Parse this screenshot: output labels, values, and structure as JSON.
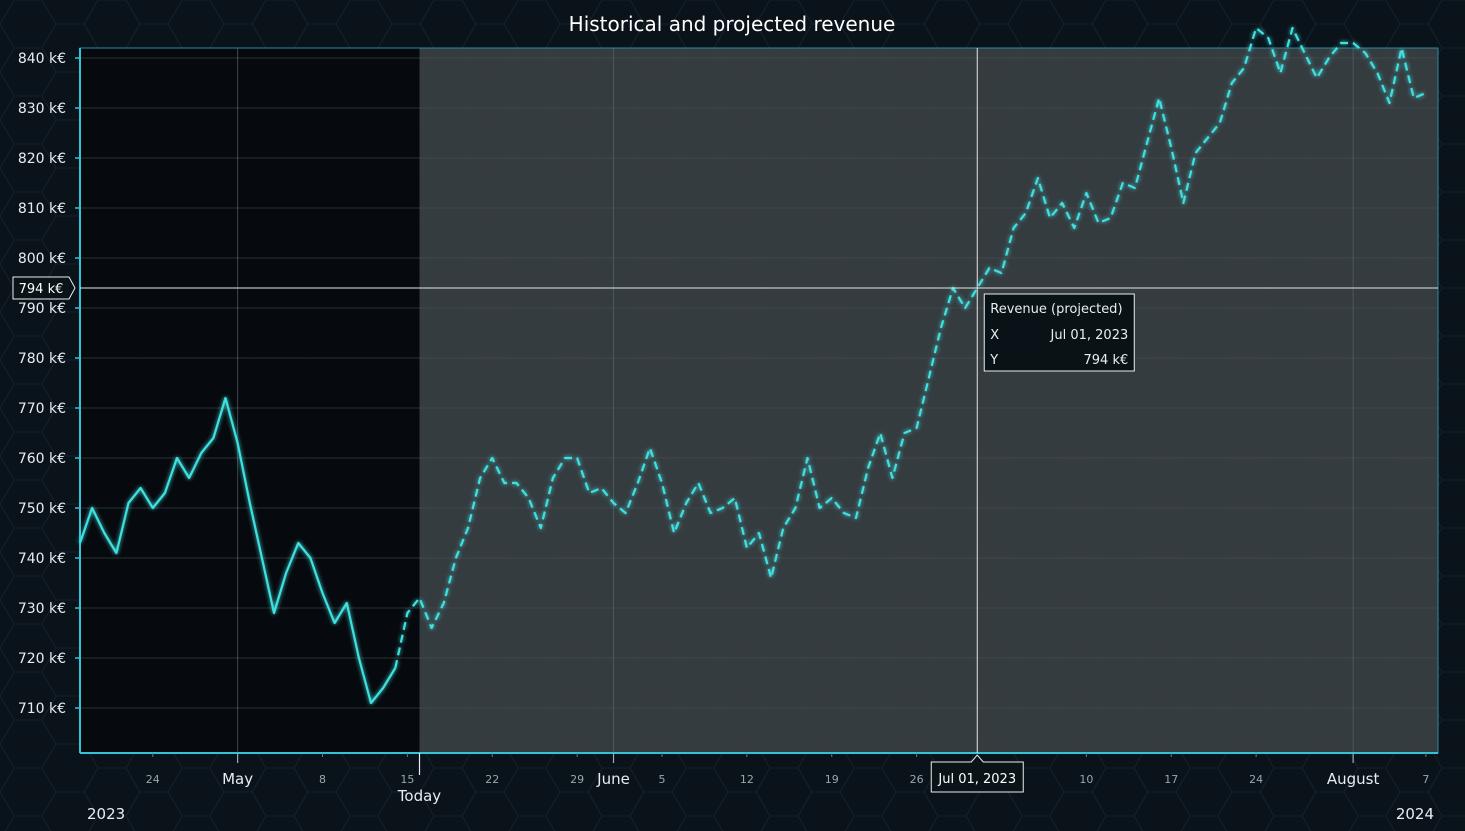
{
  "colors": {
    "background": "#0a121a",
    "historical_region": "#05090c",
    "projected_region": "#3a4043",
    "series": "#3fe0e0",
    "axis": "#2fc4d8",
    "crosshair": "#e6e6e6"
  },
  "chart_data": {
    "type": "line",
    "title": "Historical and projected revenue",
    "xlabel": "",
    "ylabel": "",
    "x_type": "date",
    "xlim": [
      "2023-04-18",
      "2023-08-08"
    ],
    "ylim": [
      701,
      842
    ],
    "y_ticks": [
      710,
      720,
      730,
      740,
      750,
      760,
      770,
      780,
      790,
      800,
      810,
      820,
      830,
      840
    ],
    "y_tick_suffix": " k€",
    "grid": true,
    "legend": "none",
    "x_minor_ticks": [
      {
        "date": "2023-04-24",
        "label": "24"
      },
      {
        "date": "2023-05-08",
        "label": "8"
      },
      {
        "date": "2023-05-15",
        "label": "15"
      },
      {
        "date": "2023-05-22",
        "label": "22"
      },
      {
        "date": "2023-05-29",
        "label": "29"
      },
      {
        "date": "2023-06-05",
        "label": "5"
      },
      {
        "date": "2023-06-12",
        "label": "12"
      },
      {
        "date": "2023-06-19",
        "label": "19"
      },
      {
        "date": "2023-06-26",
        "label": "26"
      },
      {
        "date": "2023-07-10",
        "label": "10"
      },
      {
        "date": "2023-07-17",
        "label": "17"
      },
      {
        "date": "2023-07-24",
        "label": "24"
      },
      {
        "date": "2023-08-07",
        "label": "7"
      }
    ],
    "x_major_ticks": [
      {
        "date": "2023-05-01",
        "label": "May"
      },
      {
        "date": "2023-06-01",
        "label": "June"
      },
      {
        "date": "2023-08-01",
        "label": "August"
      }
    ],
    "year_labels": {
      "left": "2023",
      "right": "2024"
    },
    "today": {
      "date": "2023-05-16",
      "label": "Today"
    },
    "series": [
      {
        "style": "solid",
        "points": [
          [
            "2023-04-18",
            743
          ],
          [
            "2023-04-19",
            750
          ],
          [
            "2023-04-20",
            745
          ],
          [
            "2023-04-21",
            741
          ],
          [
            "2023-04-22",
            751
          ],
          [
            "2023-04-23",
            754
          ],
          [
            "2023-04-24",
            750
          ],
          [
            "2023-04-25",
            753
          ],
          [
            "2023-04-26",
            760
          ],
          [
            "2023-04-27",
            756
          ],
          [
            "2023-04-28",
            761
          ],
          [
            "2023-04-29",
            764
          ],
          [
            "2023-04-30",
            772
          ],
          [
            "2023-05-01",
            763
          ],
          [
            "2023-05-02",
            751
          ],
          [
            "2023-05-03",
            740
          ],
          [
            "2023-05-04",
            729
          ],
          [
            "2023-05-05",
            737
          ],
          [
            "2023-05-06",
            743
          ],
          [
            "2023-05-07",
            740
          ],
          [
            "2023-05-08",
            733
          ],
          [
            "2023-05-09",
            727
          ],
          [
            "2023-05-10",
            731
          ],
          [
            "2023-05-11",
            720
          ],
          [
            "2023-05-12",
            711
          ],
          [
            "2023-05-13",
            714
          ],
          [
            "2023-05-14",
            718
          ]
        ]
      },
      {
        "name": "Revenue (projected)",
        "style": "dashed",
        "points": [
          [
            "2023-05-14",
            718
          ],
          [
            "2023-05-15",
            729
          ],
          [
            "2023-05-16",
            732
          ],
          [
            "2023-05-17",
            726
          ],
          [
            "2023-05-18",
            731
          ],
          [
            "2023-05-19",
            740
          ],
          [
            "2023-05-20",
            746
          ],
          [
            "2023-05-21",
            756
          ],
          [
            "2023-05-22",
            760
          ],
          [
            "2023-05-23",
            755
          ],
          [
            "2023-05-24",
            755
          ],
          [
            "2023-05-25",
            752
          ],
          [
            "2023-05-26",
            746
          ],
          [
            "2023-05-27",
            756
          ],
          [
            "2023-05-28",
            760
          ],
          [
            "2023-05-29",
            760
          ],
          [
            "2023-05-30",
            753
          ],
          [
            "2023-05-31",
            754
          ],
          [
            "2023-06-01",
            751
          ],
          [
            "2023-06-02",
            749
          ],
          [
            "2023-06-03",
            755
          ],
          [
            "2023-06-04",
            762
          ],
          [
            "2023-06-05",
            755
          ],
          [
            "2023-06-06",
            745
          ],
          [
            "2023-06-07",
            751
          ],
          [
            "2023-06-08",
            755
          ],
          [
            "2023-06-09",
            749
          ],
          [
            "2023-06-10",
            750
          ],
          [
            "2023-06-11",
            752
          ],
          [
            "2023-06-12",
            742
          ],
          [
            "2023-06-13",
            745
          ],
          [
            "2023-06-14",
            736
          ],
          [
            "2023-06-15",
            746
          ],
          [
            "2023-06-16",
            750
          ],
          [
            "2023-06-17",
            760
          ],
          [
            "2023-06-18",
            750
          ],
          [
            "2023-06-19",
            752
          ],
          [
            "2023-06-20",
            749
          ],
          [
            "2023-06-21",
            748
          ],
          [
            "2023-06-22",
            758
          ],
          [
            "2023-06-23",
            765
          ],
          [
            "2023-06-24",
            756
          ],
          [
            "2023-06-25",
            765
          ],
          [
            "2023-06-26",
            766
          ],
          [
            "2023-06-27",
            776
          ],
          [
            "2023-06-28",
            786
          ],
          [
            "2023-06-29",
            794
          ],
          [
            "2023-06-30",
            790
          ],
          [
            "2023-07-01",
            794
          ],
          [
            "2023-07-02",
            798
          ],
          [
            "2023-07-03",
            797
          ],
          [
            "2023-07-04",
            806
          ],
          [
            "2023-07-05",
            809
          ],
          [
            "2023-07-06",
            816
          ],
          [
            "2023-07-07",
            808
          ],
          [
            "2023-07-08",
            811
          ],
          [
            "2023-07-09",
            806
          ],
          [
            "2023-07-10",
            813
          ],
          [
            "2023-07-11",
            807
          ],
          [
            "2023-07-12",
            808
          ],
          [
            "2023-07-13",
            815
          ],
          [
            "2023-07-14",
            814
          ],
          [
            "2023-07-15",
            823
          ],
          [
            "2023-07-16",
            832
          ],
          [
            "2023-07-17",
            822
          ],
          [
            "2023-07-18",
            811
          ],
          [
            "2023-07-19",
            821
          ],
          [
            "2023-07-20",
            824
          ],
          [
            "2023-07-21",
            827
          ],
          [
            "2023-07-22",
            835
          ],
          [
            "2023-07-23",
            838
          ],
          [
            "2023-07-24",
            846
          ],
          [
            "2023-07-25",
            844
          ],
          [
            "2023-07-26",
            837
          ],
          [
            "2023-07-27",
            846
          ],
          [
            "2023-07-28",
            841
          ],
          [
            "2023-07-29",
            836
          ],
          [
            "2023-07-30",
            840
          ],
          [
            "2023-07-31",
            843
          ],
          [
            "2023-08-01",
            843
          ],
          [
            "2023-08-02",
            841
          ],
          [
            "2023-08-03",
            837
          ],
          [
            "2023-08-04",
            831
          ],
          [
            "2023-08-05",
            842
          ],
          [
            "2023-08-06",
            832
          ],
          [
            "2023-08-07",
            833
          ]
        ]
      }
    ],
    "crosshair": {
      "x": "2023-07-01",
      "y": 794,
      "x_label": "Jul 01, 2023",
      "y_label": "794 k€"
    },
    "tooltip": {
      "title": "Revenue (projected)",
      "rows": [
        {
          "key": "X",
          "value": "Jul 01, 2023"
        },
        {
          "key": "Y",
          "value": "794 k€"
        }
      ]
    }
  }
}
